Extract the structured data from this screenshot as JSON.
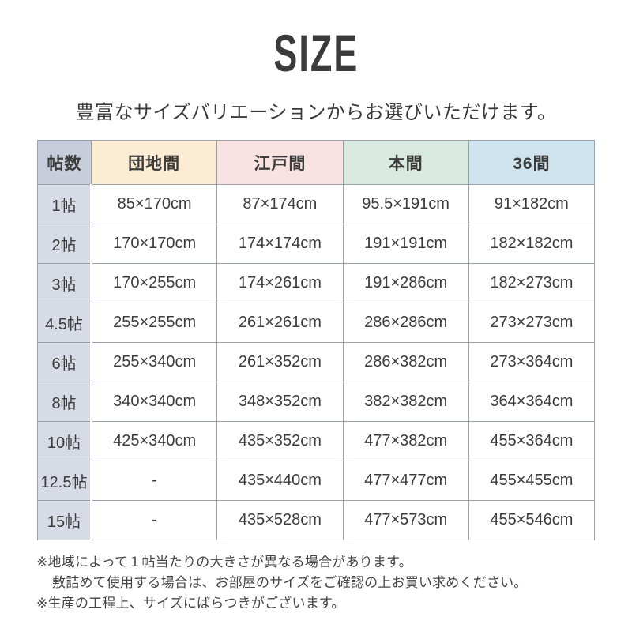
{
  "header": {
    "title": "SIZE",
    "subtitle": "豊富なサイズバリエーションからお選びいただけます。"
  },
  "table": {
    "columns": [
      "帖数",
      "団地間",
      "江戸間",
      "本間",
      "36間"
    ],
    "rows": [
      {
        "label": "1帖",
        "values": [
          "85×170cm",
          "87×174cm",
          "95.5×191cm",
          "91×182cm"
        ]
      },
      {
        "label": "2帖",
        "values": [
          "170×170cm",
          "174×174cm",
          "191×191cm",
          "182×182cm"
        ]
      },
      {
        "label": "3帖",
        "values": [
          "170×255cm",
          "174×261cm",
          "191×286cm",
          "182×273cm"
        ]
      },
      {
        "label": "4.5帖",
        "values": [
          "255×255cm",
          "261×261cm",
          "286×286cm",
          "273×273cm"
        ]
      },
      {
        "label": "6帖",
        "values": [
          "255×340cm",
          "261×352cm",
          "286×382cm",
          "273×364cm"
        ]
      },
      {
        "label": "8帖",
        "values": [
          "340×340cm",
          "348×352cm",
          "382×382cm",
          "364×364cm"
        ]
      },
      {
        "label": "10帖",
        "values": [
          "425×340cm",
          "435×352cm",
          "477×382cm",
          "455×364cm"
        ]
      },
      {
        "label": "12.5帖",
        "values": [
          "-",
          "435×440cm",
          "477×477cm",
          "455×455cm"
        ]
      },
      {
        "label": "15帖",
        "values": [
          "-",
          "435×528cm",
          "477×573cm",
          "455×546cm"
        ]
      }
    ]
  },
  "notes": [
    {
      "text": "※地域によって１帖当たりの大きさが異なる場合があります。"
    },
    {
      "text": "敷詰めて使用する場合は、お部屋のサイズをご確認の上お買い求めください。"
    },
    {
      "text": "※生産の工程上、サイズにばらつきがございます。"
    }
  ],
  "colors": {
    "header_label_bg": "#c7cdda",
    "row_label_bg": "#d6dbe5",
    "danchima_bg": "#fcecd3",
    "edoma_bg": "#f9e3e2",
    "honma_bg": "#d8e9df",
    "ken36_bg": "#cfe3ef",
    "border": "#9ba0a9",
    "text": "#3c3c3c"
  }
}
